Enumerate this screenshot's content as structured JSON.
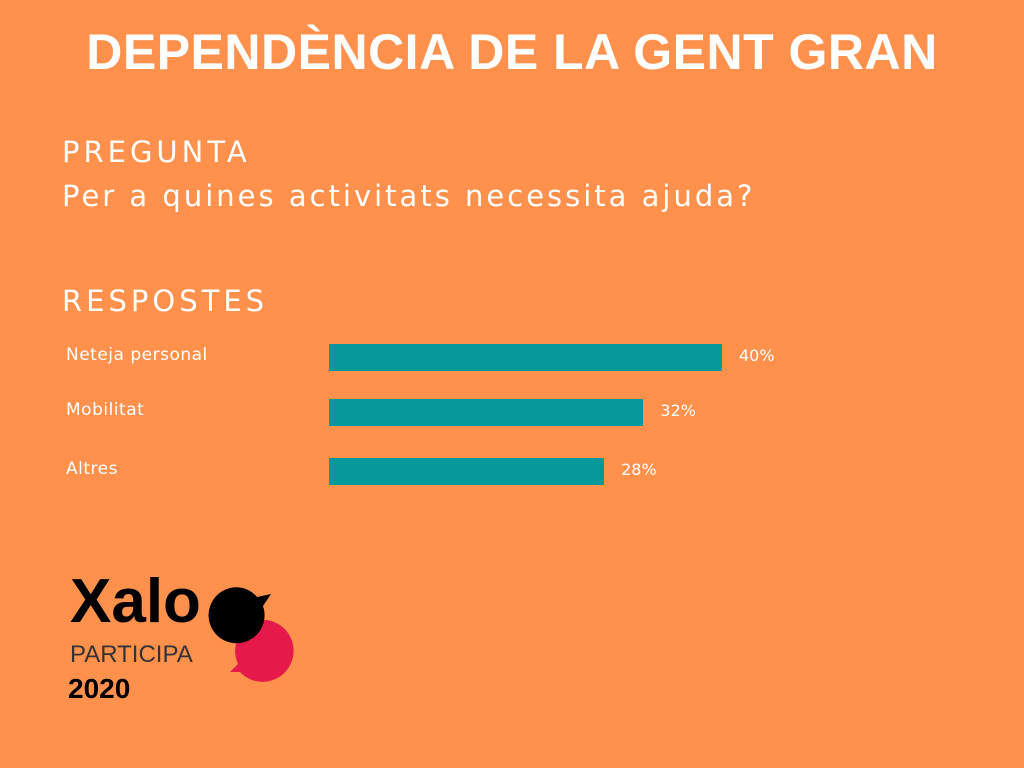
{
  "title": "DEPENDÈNCIA DE LA GENT GRAN",
  "question": {
    "label": "PREGUNTA",
    "text": "Per a quines activitats necessita ajuda?"
  },
  "answers_label": "RESPOSTES",
  "colors": {
    "background": "#FF914D",
    "bar": "#06999C",
    "logo_bubble": "#E5194A"
  },
  "logo": {
    "name": "Xalo",
    "sub": "PARTICIPA",
    "year": "2020"
  },
  "chart_data": {
    "type": "bar",
    "orientation": "horizontal",
    "categories": [
      "Neteja personal",
      "Mobilitat",
      "Altres"
    ],
    "values": [
      40,
      32,
      28
    ],
    "value_labels": [
      "40%",
      "32%",
      "28%"
    ],
    "title": "RESPOSTES",
    "xlabel": "",
    "ylabel": "",
    "unit": "%"
  }
}
